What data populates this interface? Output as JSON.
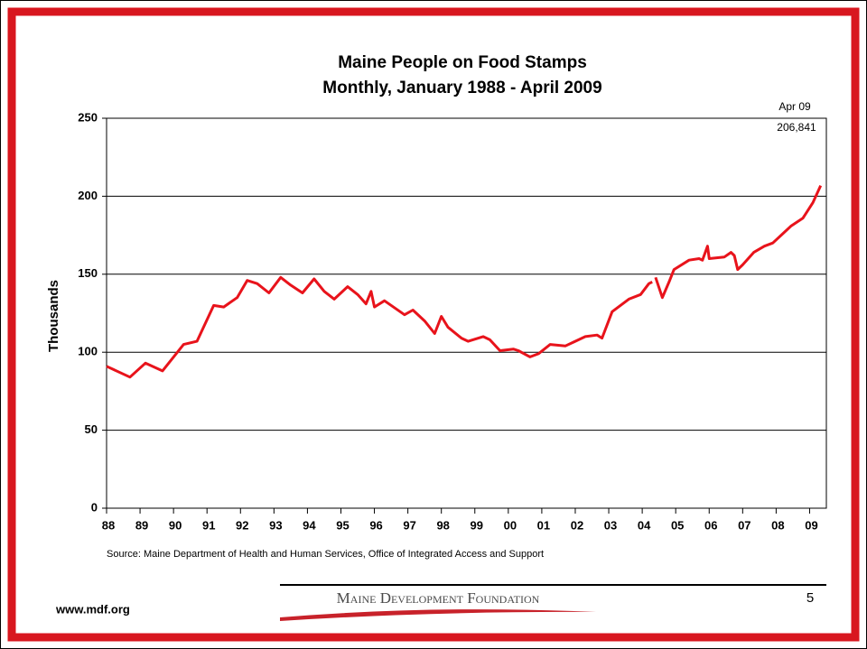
{
  "chart_data": {
    "type": "line",
    "title": "Maine People on Food Stamps",
    "subtitle": "Monthly, January 1988 - April 2009",
    "y_label": "Thousands",
    "source": "Source: Maine Department of Health and Human Services, Office of Integrated Access and Support",
    "annotations": [
      "Apr 09",
      "206,841"
    ],
    "x": [
      1988.0,
      1988.7,
      1989.16,
      1989.67,
      1990.3,
      1990.7,
      1991.2,
      1991.5,
      1991.9,
      1992.2,
      1992.5,
      1992.85,
      1993.2,
      1993.5,
      1993.85,
      1994.2,
      1994.5,
      1994.8,
      1995.2,
      1995.5,
      1995.75,
      1995.9,
      1996.0,
      1996.3,
      1996.9,
      1997.15,
      1997.5,
      1997.8,
      1998.0,
      1998.2,
      1998.6,
      1998.8,
      1999.25,
      1999.45,
      1999.75,
      2000.15,
      2000.3,
      2000.65,
      2000.9,
      2001.25,
      2001.7,
      2002.3,
      2002.65,
      2002.8,
      2003.1,
      2003.6,
      2003.95,
      2004.2,
      2004.3,
      null,
      2004.4,
      2004.6,
      2004.8,
      2004.95,
      2005.4,
      2005.7,
      2005.8,
      2005.95,
      2006.0,
      2006.45,
      2006.65,
      2006.75,
      2006.85,
      2007.0,
      2007.33,
      2007.65,
      2007.9,
      2008.2,
      2008.45,
      2008.8,
      2009.1,
      2009.33
    ],
    "series": [
      {
        "name": "People on Food Stamps",
        "color": "#e8131b",
        "values": [
          91,
          84,
          93,
          88,
          105,
          107,
          130,
          129,
          135,
          146,
          144,
          138,
          148,
          143,
          138,
          147,
          139,
          134,
          142,
          137,
          131,
          139,
          129,
          133,
          124,
          127,
          120,
          112,
          123,
          116,
          109,
          107,
          110,
          108,
          101,
          102,
          101,
          97,
          99,
          105,
          104,
          110,
          111,
          109,
          126,
          134,
          137,
          144,
          145,
          null,
          148,
          135,
          145,
          153,
          159,
          160,
          159,
          168,
          160,
          161,
          164,
          162,
          153,
          156,
          164,
          168,
          170,
          176,
          181,
          186,
          196,
          206.841
        ]
      }
    ],
    "xlim": [
      1988,
      2009.5
    ],
    "xticks": [
      {
        "value": 1988,
        "label": "88"
      },
      {
        "value": 1989,
        "label": "89"
      },
      {
        "value": 1990,
        "label": "90"
      },
      {
        "value": 1991,
        "label": "91"
      },
      {
        "value": 1992,
        "label": "92"
      },
      {
        "value": 1993,
        "label": "93"
      },
      {
        "value": 1994,
        "label": "94"
      },
      {
        "value": 1995,
        "label": "95"
      },
      {
        "value": 1996,
        "label": "96"
      },
      {
        "value": 1997,
        "label": "97"
      },
      {
        "value": 1998,
        "label": "98"
      },
      {
        "value": 1999,
        "label": "99"
      },
      {
        "value": 2000,
        "label": "00"
      },
      {
        "value": 2001,
        "label": "01"
      },
      {
        "value": 2002,
        "label": "02"
      },
      {
        "value": 2003,
        "label": "03"
      },
      {
        "value": 2004,
        "label": "04"
      },
      {
        "value": 2005,
        "label": "05"
      },
      {
        "value": 2006,
        "label": "06"
      },
      {
        "value": 2007,
        "label": "07"
      },
      {
        "value": 2008,
        "label": "08"
      },
      {
        "value": 2009,
        "label": "09"
      }
    ],
    "ylim": [
      0,
      250
    ],
    "yticks": [
      0,
      50,
      100,
      150,
      200,
      250
    ],
    "grid": true
  },
  "footer": {
    "url": "www.mdf.org",
    "logo": "Maine Development Foundation",
    "page": "5"
  }
}
